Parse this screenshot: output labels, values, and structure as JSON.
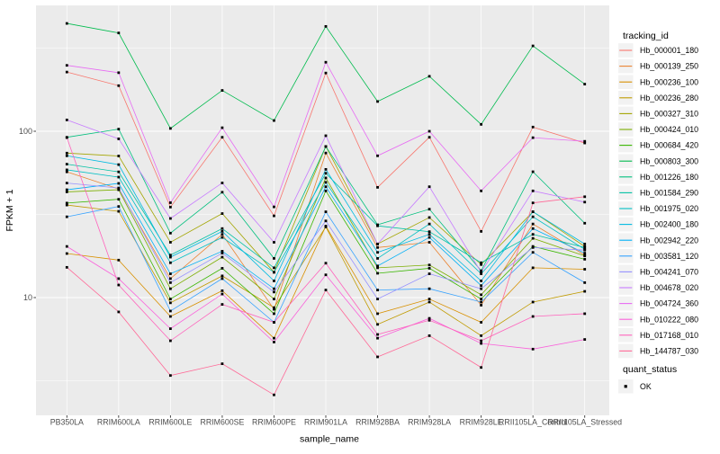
{
  "figure": {
    "x_axis_title": "sample_name",
    "y_axis_title": "FPKM + 1"
  },
  "legend": {
    "title": "tracking_id",
    "status_legend": {
      "title": "quant_status",
      "item": "OK",
      "marker": "black-square"
    }
  },
  "colors": {
    "panel_background": "#EBEBEB",
    "gridline": "#FFFFFF",
    "tick_mark": "#333333",
    "tick_text": "#4D4D4D",
    "axis_title_text": "#000000",
    "legend_text": "#000000",
    "legend_key_background": "#F2F2F2",
    "point": "#000000",
    "page_background": "#FFFFFF"
  },
  "chart_data": {
    "type": "line",
    "x_scale": "categorical",
    "y_scale": "log10",
    "title": "",
    "xlabel": "sample_name",
    "ylabel": "FPKM + 1",
    "ylim": [
      2,
      540
    ],
    "grid": true,
    "legend_position": "right",
    "marker": "black-square",
    "y_axis": {
      "tick_values": [
        100,
        10
      ],
      "tick_labels": [
        "100",
        "10"
      ],
      "minor_gridline_values": [
        316.23,
        31.62,
        3.162
      ]
    },
    "categories": [
      "PB350LA",
      "RRIM600LA",
      "RRIM600LE",
      "RRIM600SE",
      "RRIM600PE",
      "RRIM901LA",
      "RRIM928BA",
      "RRIM928LA",
      "RRIM928LE",
      "RRII105LA_Control",
      "RRII105LA_Stressed"
    ],
    "series": [
      {
        "name": "Hb_000001_180",
        "color": "#F8766D",
        "values": [
          227,
          188,
          35,
          92,
          31,
          224,
          46,
          92,
          25,
          106,
          85
        ]
      },
      {
        "name": "Hb_000139_250",
        "color": "#EA8331",
        "values": [
          57,
          45,
          13,
          24,
          8.5,
          74,
          20,
          21.5,
          9,
          27.7,
          18
        ]
      },
      {
        "name": "Hb_000236_100",
        "color": "#D89000",
        "values": [
          18.4,
          16.8,
          7.7,
          11,
          5.7,
          26.9,
          8,
          9.8,
          7.1,
          15.1,
          14.8
        ]
      },
      {
        "name": "Hb_000236_280",
        "color": "#C09B00",
        "values": [
          36,
          33,
          9.3,
          13.5,
          8.7,
          26.6,
          6.9,
          9.4,
          5.9,
          9.4,
          10.9
        ]
      },
      {
        "name": "Hb_000327_310",
        "color": "#A3A500",
        "values": [
          73.9,
          71,
          21.5,
          32,
          14.2,
          81,
          21,
          30.3,
          15.8,
          32.8,
          20.3
        ]
      },
      {
        "name": "Hb_000424_010",
        "color": "#7CAE00",
        "values": [
          43.2,
          44.5,
          11.3,
          17.5,
          9.8,
          52.4,
          15.1,
          15.7,
          10.4,
          22.7,
          17.8
        ]
      },
      {
        "name": "Hb_000684_420",
        "color": "#39B600",
        "values": [
          37,
          39,
          9.8,
          15,
          8,
          43.8,
          14,
          15,
          9.8,
          20.3,
          17
        ]
      },
      {
        "name": "Hb_000803_300",
        "color": "#00BB4E",
        "values": [
          445,
          390,
          104,
          176,
          116,
          427,
          151,
          214,
          110,
          326,
          192
        ]
      },
      {
        "name": "Hb_001226_180",
        "color": "#00BF7D",
        "values": [
          92,
          103,
          24.4,
          43,
          17.2,
          81,
          27.4,
          34,
          14.5,
          57.1,
          28
        ]
      },
      {
        "name": "Hb_001584_290",
        "color": "#00C1A3",
        "values": [
          63.4,
          57,
          18,
          26,
          15.1,
          55.9,
          27,
          24.9,
          16.2,
          24,
          20
        ]
      },
      {
        "name": "Hb_001975_020",
        "color": "#00BFC4",
        "values": [
          58.6,
          53,
          16.2,
          23,
          14.2,
          49.3,
          17.2,
          27.7,
          13.9,
          30.6,
          19.5
        ]
      },
      {
        "name": "Hb_002400_180",
        "color": "#00BAE0",
        "values": [
          71.2,
          63,
          17.5,
          25,
          12.6,
          59,
          18.7,
          24,
          12.6,
          32.8,
          21
        ]
      },
      {
        "name": "Hb_002942_220",
        "color": "#00B0F6",
        "values": [
          44.5,
          48.6,
          13.9,
          19,
          11.3,
          46.4,
          15.5,
          23,
          11.8,
          26,
          18.5
        ]
      },
      {
        "name": "Hb_003581_120",
        "color": "#35A2FF",
        "values": [
          30.6,
          35.3,
          8.3,
          13,
          7.1,
          32.8,
          11.1,
          11.3,
          9.4,
          18.7,
          12.3
        ]
      },
      {
        "name": "Hb_004241_070",
        "color": "#9590FF",
        "values": [
          48.8,
          45.6,
          12.3,
          18.5,
          10.8,
          28.9,
          9.8,
          13.9,
          11.3,
          20,
          19.3
        ]
      },
      {
        "name": "Hb_004678_020",
        "color": "#C77CFF",
        "values": [
          117,
          90,
          29.9,
          48.9,
          21.5,
          94,
          21,
          46.4,
          14.2,
          43.8,
          37.5
        ]
      },
      {
        "name": "Hb_004724_360",
        "color": "#E76BF3",
        "values": [
          249,
          225,
          37.2,
          105,
          35.1,
          260,
          71.2,
          100,
          43.8,
          91.5,
          87
        ]
      },
      {
        "name": "Hb_010222_080",
        "color": "#FA62DB",
        "values": [
          20.3,
          13,
          6.5,
          10.5,
          5.4,
          13.7,
          5.7,
          7.5,
          5.3,
          4.9,
          5.6
        ]
      },
      {
        "name": "Hb_017168_010",
        "color": "#FF62BC",
        "values": [
          91.6,
          11.9,
          5.5,
          9.1,
          7.1,
          16.1,
          6,
          7.3,
          5.5,
          7.7,
          8
        ]
      },
      {
        "name": "Hb_144787_030",
        "color": "#FF6A98",
        "values": [
          15.2,
          8.2,
          3.4,
          4,
          2.6,
          11.1,
          4.4,
          5.9,
          3.8,
          37.1,
          40.4
        ]
      }
    ]
  }
}
